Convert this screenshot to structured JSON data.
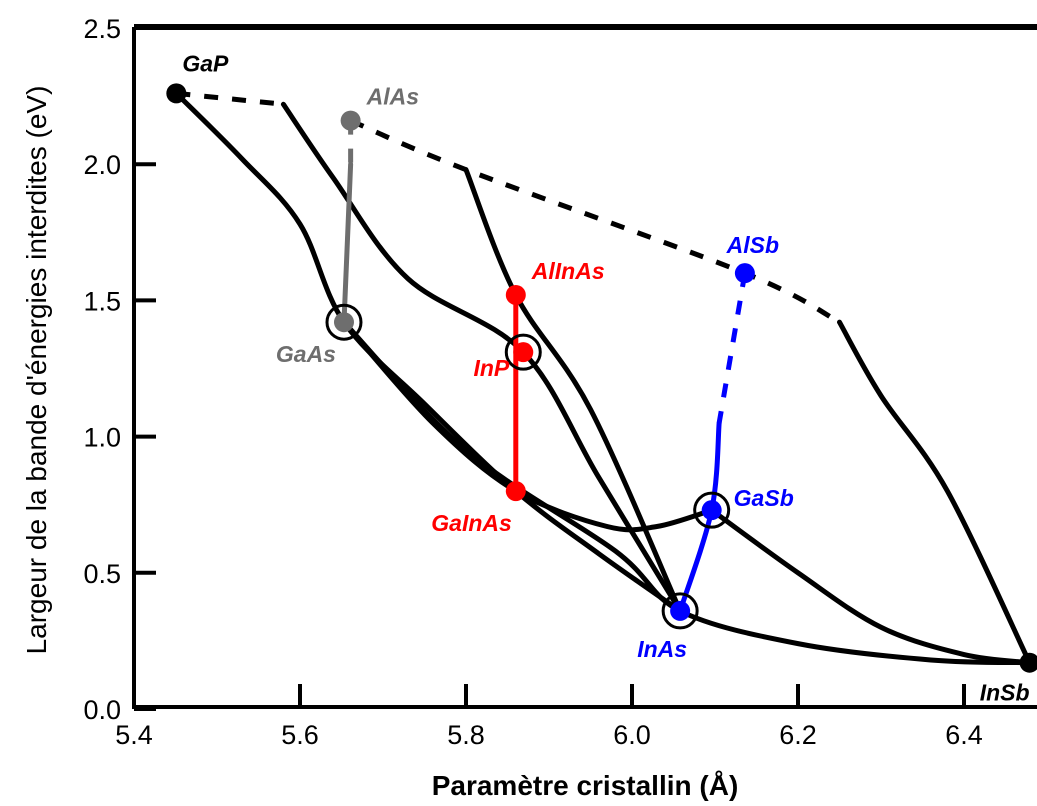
{
  "chart_data": {
    "type": "line",
    "title": "",
    "xlabel": "Paramètre cristallin (Å)",
    "ylabel": "Largeur de la bande d'énergies interdites (eV)",
    "xlim": [
      5.4,
      6.5
    ],
    "ylim": [
      0.0,
      2.5
    ],
    "xticks": [
      "5.4",
      "5.6",
      "5.8",
      "6.0",
      "6.2",
      "6.4"
    ],
    "yticks": [
      "0.0",
      "0.5",
      "1.0",
      "1.5",
      "2.0",
      "2.5"
    ],
    "grid": false,
    "colors": {
      "black": "#000000",
      "gray": "#6e6e6e",
      "red": "#ff0000",
      "blue": "#0000ff"
    },
    "points": [
      {
        "label": "GaP",
        "x": 5.451,
        "y": 2.26,
        "color": "black",
        "circled": false
      },
      {
        "label": "AlAs",
        "x": 5.661,
        "y": 2.16,
        "color": "gray",
        "circled": false
      },
      {
        "label": "GaAs",
        "x": 5.653,
        "y": 1.42,
        "color": "gray",
        "circled": true
      },
      {
        "label": "AlInAs",
        "x": 5.86,
        "y": 1.52,
        "color": "red",
        "circled": false
      },
      {
        "label": "InP",
        "x": 5.869,
        "y": 1.31,
        "color": "red",
        "circled": true
      },
      {
        "label": "GaInAs",
        "x": 5.86,
        "y": 0.8,
        "color": "red",
        "circled": false
      },
      {
        "label": "AlSb",
        "x": 6.136,
        "y": 1.6,
        "color": "blue",
        "circled": false
      },
      {
        "label": "GaSb",
        "x": 6.096,
        "y": 0.73,
        "color": "blue",
        "circled": true
      },
      {
        "label": "InAs",
        "x": 6.058,
        "y": 0.36,
        "color": "blue",
        "circled": true
      },
      {
        "label": "InSb",
        "x": 6.479,
        "y": 0.17,
        "color": "black",
        "circled": false
      }
    ],
    "series": [
      {
        "style": "solid",
        "color": "black",
        "points": [
          [
            5.451,
            2.26
          ],
          [
            5.53,
            2.02
          ],
          [
            5.6,
            1.78
          ],
          [
            5.653,
            1.42
          ],
          [
            5.75,
            1.12
          ],
          [
            5.86,
            0.8
          ],
          [
            5.96,
            0.57
          ],
          [
            6.058,
            0.36
          ]
        ]
      },
      {
        "style": "solid",
        "color": "black",
        "points": [
          [
            5.653,
            1.42
          ],
          [
            5.76,
            1.05
          ],
          [
            5.86,
            0.8
          ],
          [
            5.97,
            0.67
          ],
          [
            6.03,
            0.67
          ],
          [
            6.096,
            0.73
          ]
        ]
      },
      {
        "style": "solid",
        "color": "black",
        "points": [
          [
            5.653,
            1.42
          ],
          [
            5.8,
            0.95
          ],
          [
            5.98,
            0.58
          ],
          [
            6.058,
            0.36
          ],
          [
            6.2,
            0.24
          ],
          [
            6.36,
            0.18
          ],
          [
            6.479,
            0.17
          ]
        ]
      },
      {
        "style": "solid",
        "color": "black",
        "points": [
          [
            6.096,
            0.73
          ],
          [
            6.2,
            0.5
          ],
          [
            6.3,
            0.3
          ],
          [
            6.4,
            0.2
          ],
          [
            6.479,
            0.17
          ]
        ]
      },
      {
        "style": "solid",
        "color": "black",
        "points": [
          [
            5.58,
            2.22
          ],
          [
            5.64,
            1.95
          ],
          [
            5.73,
            1.58
          ],
          [
            5.869,
            1.31
          ],
          [
            5.96,
            0.85
          ],
          [
            6.058,
            0.36
          ]
        ]
      },
      {
        "style": "solid",
        "color": "black",
        "points": [
          [
            5.8,
            1.98
          ],
          [
            5.86,
            1.52
          ],
          [
            5.95,
            1.1
          ],
          [
            6.058,
            0.36
          ]
        ]
      },
      {
        "style": "solid",
        "color": "black",
        "points": [
          [
            6.25,
            1.42
          ],
          [
            6.3,
            1.15
          ],
          [
            6.38,
            0.8
          ],
          [
            6.479,
            0.17
          ]
        ]
      },
      {
        "style": "dashed",
        "color": "black",
        "points": [
          [
            5.451,
            2.26
          ],
          [
            5.58,
            2.22
          ]
        ]
      },
      {
        "style": "dashed",
        "color": "black",
        "points": [
          [
            5.661,
            2.16
          ],
          [
            5.8,
            1.98
          ],
          [
            6.136,
            1.6
          ],
          [
            6.25,
            1.42
          ]
        ]
      },
      {
        "style": "solid",
        "color": "gray",
        "points": [
          [
            5.661,
            2.0
          ],
          [
            5.653,
            1.42
          ]
        ]
      },
      {
        "style": "dashed",
        "color": "gray",
        "points": [
          [
            5.661,
            2.16
          ],
          [
            5.661,
            2.0
          ]
        ]
      },
      {
        "style": "solid",
        "color": "red",
        "points": [
          [
            5.86,
            1.52
          ],
          [
            5.86,
            0.8
          ]
        ]
      },
      {
        "style": "dashed",
        "color": "blue",
        "points": [
          [
            6.136,
            1.6
          ],
          [
            6.105,
            1.05
          ]
        ]
      },
      {
        "style": "solid",
        "color": "blue",
        "points": [
          [
            6.105,
            1.05
          ],
          [
            6.096,
            0.73
          ],
          [
            6.058,
            0.36
          ]
        ]
      }
    ]
  }
}
